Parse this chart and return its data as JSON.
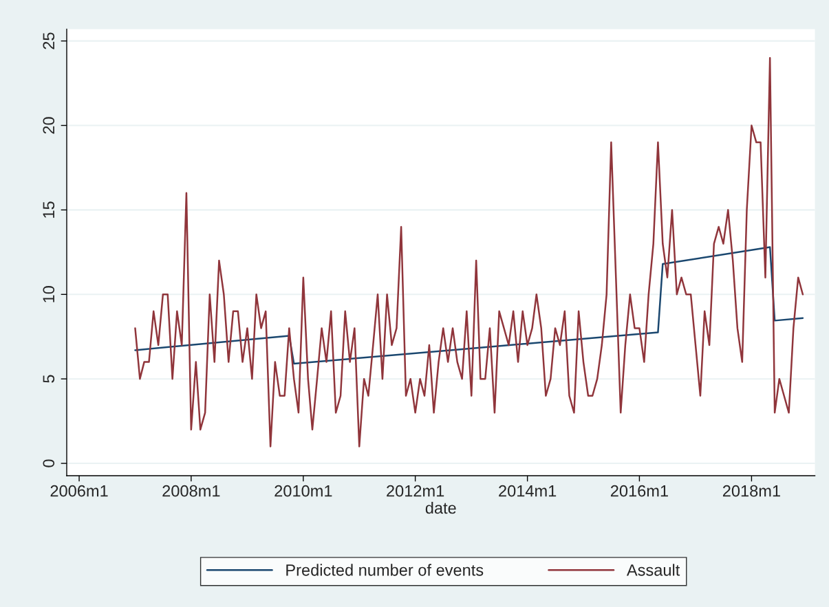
{
  "chart_data": {
    "type": "line",
    "xlabel": "date",
    "xlim": [
      "2005-10-12",
      "2019-02-18"
    ],
    "xticks": [
      {
        "value": "2006-01",
        "label": "2006m1"
      },
      {
        "value": "2008-01",
        "label": "2008m1"
      },
      {
        "value": "2010-01",
        "label": "2010m1"
      },
      {
        "value": "2012-01",
        "label": "2012m1"
      },
      {
        "value": "2014-01",
        "label": "2014m1"
      },
      {
        "value": "2016-01",
        "label": "2016m1"
      },
      {
        "value": "2018-01",
        "label": "2018m1"
      }
    ],
    "ylim": [
      -0.73,
      25.7
    ],
    "yticks": [
      0,
      5,
      10,
      15,
      20,
      25
    ],
    "grid": "y",
    "legend": "bottom",
    "series": [
      {
        "name": "Predicted number of events",
        "color": "#1a476f",
        "x": [
          "2007-01",
          "2009-10",
          "2009-11",
          "2016-05",
          "2016-06",
          "2018-05",
          "2018-06",
          "2018-12"
        ],
        "values": [
          6.7,
          7.55,
          5.9,
          7.75,
          11.8,
          12.8,
          8.45,
          8.6
        ]
      },
      {
        "name": "Assault",
        "color": "#90353b",
        "x": [
          "2007-01",
          "2007-02",
          "2007-03",
          "2007-04",
          "2007-05",
          "2007-06",
          "2007-07",
          "2007-08",
          "2007-09",
          "2007-10",
          "2007-11",
          "2007-12",
          "2008-01",
          "2008-02",
          "2008-03",
          "2008-04",
          "2008-05",
          "2008-06",
          "2008-07",
          "2008-08",
          "2008-09",
          "2008-10",
          "2008-11",
          "2008-12",
          "2009-01",
          "2009-02",
          "2009-03",
          "2009-04",
          "2009-05",
          "2009-06",
          "2009-07",
          "2009-08",
          "2009-09",
          "2009-10",
          "2009-11",
          "2009-12",
          "2010-01",
          "2010-02",
          "2010-03",
          "2010-04",
          "2010-05",
          "2010-06",
          "2010-07",
          "2010-08",
          "2010-09",
          "2010-10",
          "2010-11",
          "2010-12",
          "2011-01",
          "2011-02",
          "2011-03",
          "2011-04",
          "2011-05",
          "2011-06",
          "2011-07",
          "2011-08",
          "2011-09",
          "2011-10",
          "2011-11",
          "2011-12",
          "2012-01",
          "2012-02",
          "2012-03",
          "2012-04",
          "2012-05",
          "2012-06",
          "2012-07",
          "2012-08",
          "2012-09",
          "2012-10",
          "2012-11",
          "2012-12",
          "2013-01",
          "2013-02",
          "2013-03",
          "2013-04",
          "2013-05",
          "2013-06",
          "2013-07",
          "2013-08",
          "2013-09",
          "2013-10",
          "2013-11",
          "2013-12",
          "2014-01",
          "2014-02",
          "2014-03",
          "2014-04",
          "2014-05",
          "2014-06",
          "2014-07",
          "2014-08",
          "2014-09",
          "2014-10",
          "2014-11",
          "2014-12",
          "2015-01",
          "2015-02",
          "2015-03",
          "2015-04",
          "2015-05",
          "2015-06",
          "2015-07",
          "2015-08",
          "2015-09",
          "2015-10",
          "2015-11",
          "2015-12",
          "2016-01",
          "2016-02",
          "2016-03",
          "2016-04",
          "2016-05",
          "2016-06",
          "2016-07",
          "2016-08",
          "2016-09",
          "2016-10",
          "2016-11",
          "2016-12",
          "2017-01",
          "2017-02",
          "2017-03",
          "2017-04",
          "2017-05",
          "2017-06",
          "2017-07",
          "2017-08",
          "2017-09",
          "2017-10",
          "2017-11",
          "2017-12",
          "2018-01",
          "2018-02",
          "2018-03",
          "2018-04",
          "2018-05",
          "2018-06",
          "2018-07",
          "2018-08",
          "2018-09",
          "2018-10",
          "2018-11",
          "2018-12"
        ],
        "values": [
          8,
          5,
          6,
          6,
          9,
          7,
          10,
          10,
          5,
          9,
          7,
          16,
          2,
          6,
          2,
          3,
          10,
          6,
          12,
          10,
          6,
          9,
          9,
          6,
          8,
          5,
          10,
          8,
          9,
          1,
          6,
          4,
          4,
          8,
          5,
          3,
          11,
          5,
          2,
          5,
          8,
          6,
          9,
          3,
          4,
          9,
          6,
          8,
          1,
          5,
          4,
          7,
          10,
          5,
          10,
          7,
          8,
          14,
          4,
          5,
          3,
          5,
          4,
          7,
          3,
          6,
          8,
          6,
          8,
          6,
          5,
          9,
          4,
          12,
          5,
          5,
          8,
          3,
          9,
          8,
          7,
          9,
          6,
          9,
          7,
          8,
          10,
          8,
          4,
          5,
          8,
          7,
          9,
          4,
          3,
          9,
          6,
          4,
          4,
          5,
          7,
          10,
          19,
          11,
          3,
          7,
          10,
          8,
          8,
          6,
          10,
          13,
          19,
          13,
          11,
          15,
          10,
          11,
          10,
          10,
          7,
          4,
          9,
          7,
          13,
          14,
          13,
          15,
          12,
          8,
          6,
          15,
          20,
          19,
          19,
          11,
          24,
          3,
          5,
          4,
          3,
          8,
          11,
          10
        ]
      }
    ]
  }
}
